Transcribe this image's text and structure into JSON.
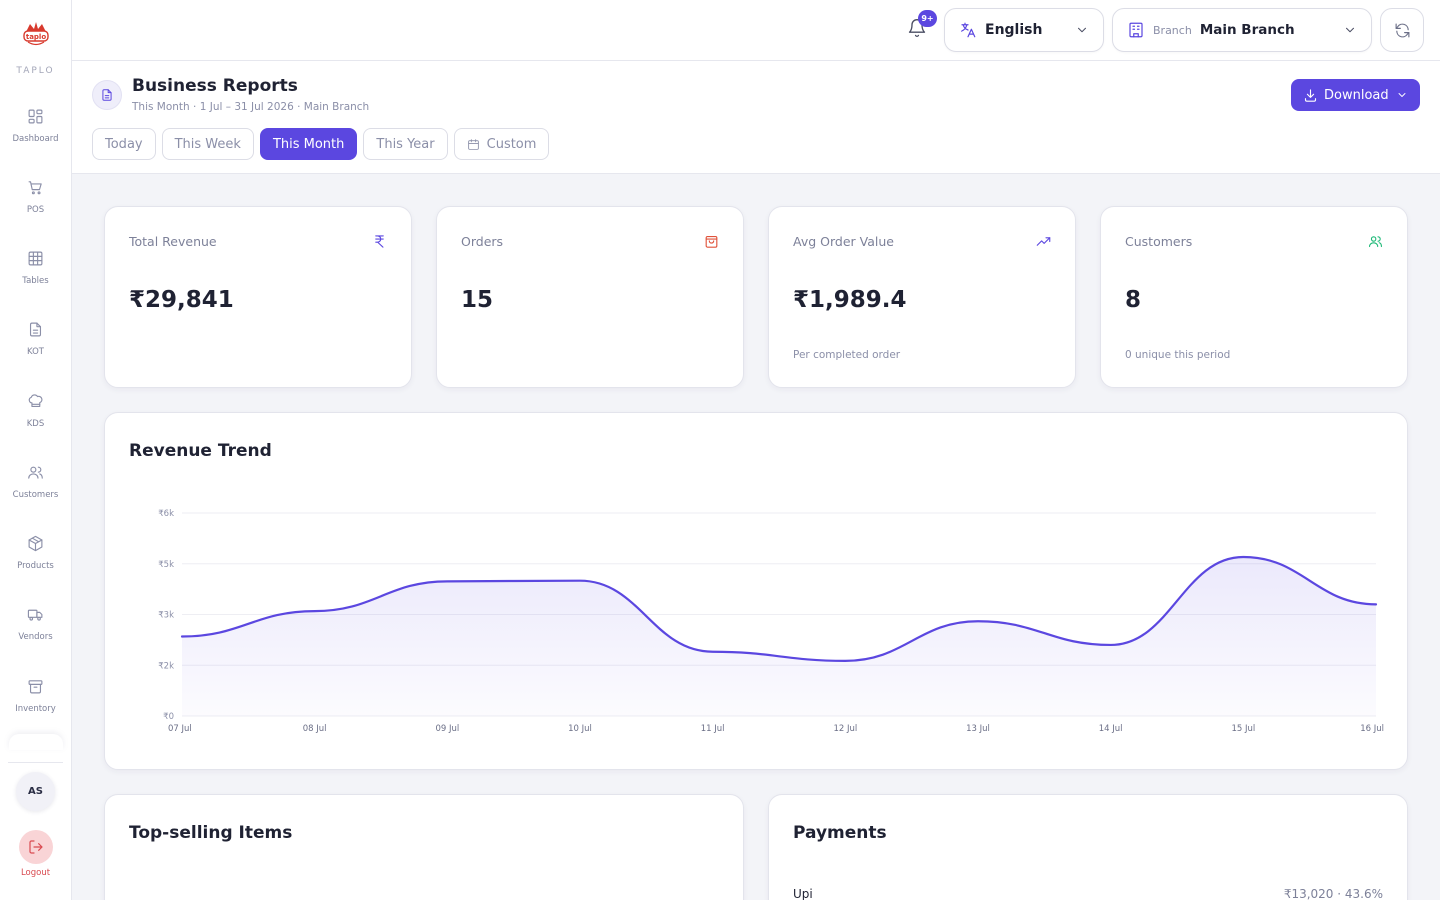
{
  "sidebar": {
    "brand": "TAPLO",
    "logo_text": "taplo",
    "items": [
      {
        "label": "Dashboard",
        "icon": "grid-icon"
      },
      {
        "label": "POS",
        "icon": "cart-icon"
      },
      {
        "label": "Tables",
        "icon": "table-icon"
      },
      {
        "label": "KOT",
        "icon": "document-icon"
      },
      {
        "label": "KDS",
        "icon": "chef-hat-icon"
      },
      {
        "label": "Customers",
        "icon": "users-icon"
      },
      {
        "label": "Products",
        "icon": "box-icon"
      },
      {
        "label": "Vendors",
        "icon": "truck-icon"
      },
      {
        "label": "Inventory",
        "icon": "archive-icon"
      }
    ],
    "user_initials": "AS",
    "logout_label": "Logout"
  },
  "topbar": {
    "notification_badge": "9+",
    "language": "English",
    "branch_label": "Branch",
    "branch_value": "Main Branch"
  },
  "header": {
    "title": "Business Reports",
    "subtitle": "This Month · 1 Jul – 31 Jul 2026 · Main Branch",
    "download_label": "Download",
    "filters": [
      "Today",
      "This Week",
      "This Month",
      "This Year",
      "Custom"
    ],
    "active_filter": "This Month"
  },
  "stats": [
    {
      "title": "Total Revenue",
      "value": "₹29,841",
      "note": "",
      "icon": "rupee-icon",
      "color": "#5b47e0"
    },
    {
      "title": "Orders",
      "value": "15",
      "note": "",
      "icon": "shopping-bag-icon",
      "color": "#e0523a"
    },
    {
      "title": "Avg Order Value",
      "value": "₹1,989.4",
      "note": "Per completed order",
      "icon": "trending-up-icon",
      "color": "#5b47e0"
    },
    {
      "title": "Customers",
      "value": "8",
      "note": "0 unique this period",
      "icon": "users-icon",
      "color": "#1fb978"
    }
  ],
  "revenue_trend": {
    "title": "Revenue Trend"
  },
  "chart_data": {
    "type": "area",
    "title": "Revenue Trend",
    "categories": [
      "07 Jul",
      "08 Jul",
      "09 Jul",
      "10 Jul",
      "11 Jul",
      "12 Jul",
      "13 Jul",
      "14 Jul",
      "15 Jul",
      "16 Jul"
    ],
    "y_tick_labels": [
      "₹0",
      "₹2k",
      "₹3k",
      "₹5k",
      "₹6k"
    ],
    "y_tick_values": [
      0,
      1500,
      3000,
      4500,
      6000
    ],
    "values": [
      2350,
      3100,
      3980,
      4000,
      1900,
      1630,
      2800,
      2100,
      4700,
      3300
    ],
    "ylim": [
      0,
      6000
    ],
    "color": "#5b47e0",
    "grid": true
  },
  "top_items": {
    "title": "Top-selling Items"
  },
  "payments": {
    "title": "Payments",
    "rows": [
      {
        "method": "Upi",
        "amount": "₹13,020 · 43.6%"
      }
    ]
  },
  "colors": {
    "accent": "#5b47e0",
    "danger": "#d94a50",
    "success": "#1fb978"
  }
}
